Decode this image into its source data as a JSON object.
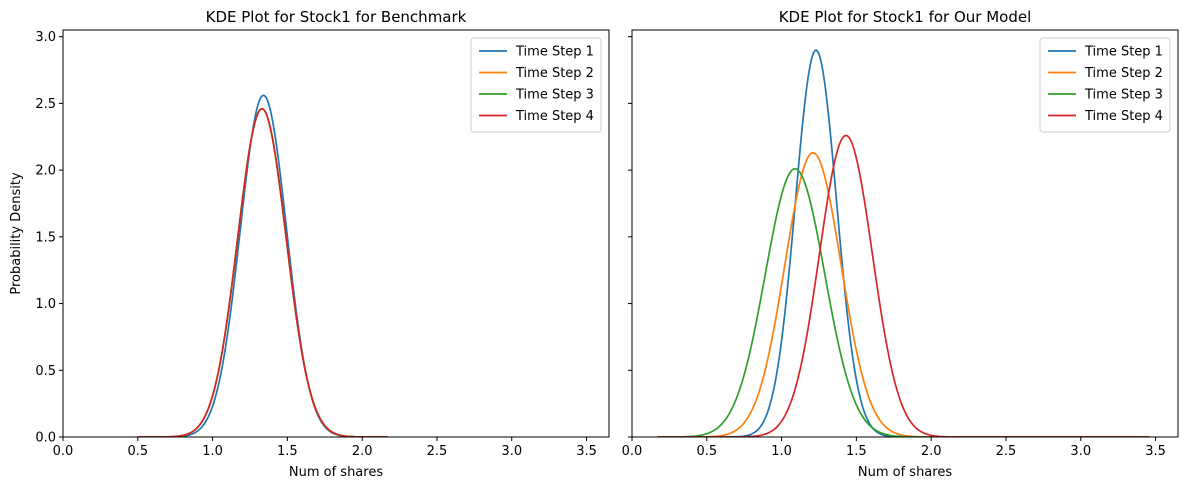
{
  "chart_data": [
    {
      "type": "line",
      "title": "KDE Plot for Stock1 for Benchmark",
      "xlabel": "Num of shares",
      "ylabel": "Probability Density",
      "xlim": [
        0.0,
        3.65
      ],
      "ylim": [
        0.0,
        3.05
      ],
      "xticks": [
        "0.0",
        "0.5",
        "1.0",
        "1.5",
        "2.0",
        "2.5",
        "3.0",
        "3.5"
      ],
      "yticks": [
        "0.0",
        "0.5",
        "1.0",
        "1.5",
        "2.0",
        "2.5",
        "3.0"
      ],
      "show_yticklabels": true,
      "grid": false,
      "legend": "top-right",
      "x_range": [
        0.5,
        2.17
      ],
      "series": [
        {
          "name": "Time Step 1",
          "color": "#1f77b4",
          "peak_x": 1.34,
          "peak_y": 2.56,
          "sigma": 0.155
        },
        {
          "name": "Time Step 2",
          "color": "#ff7f0e",
          "peak_x": 1.33,
          "peak_y": 2.46,
          "sigma": 0.162
        },
        {
          "name": "Time Step 3",
          "color": "#2ca02c",
          "peak_x": 1.33,
          "peak_y": 2.46,
          "sigma": 0.162
        },
        {
          "name": "Time Step 4",
          "color": "#d62728",
          "peak_x": 1.33,
          "peak_y": 2.46,
          "sigma": 0.162
        }
      ]
    },
    {
      "type": "line",
      "title": "KDE Plot for Stock1 for Our Model",
      "xlabel": "Num of shares",
      "ylabel": "",
      "xlim": [
        0.0,
        3.65
      ],
      "ylim": [
        0.0,
        3.05
      ],
      "xticks": [
        "0.0",
        "0.5",
        "1.0",
        "1.5",
        "2.0",
        "2.5",
        "3.0",
        "3.5"
      ],
      "yticks": [
        "0.0",
        "0.5",
        "1.0",
        "1.5",
        "2.0",
        "2.5",
        "3.0"
      ],
      "show_yticklabels": false,
      "grid": false,
      "legend": "top-right",
      "x_range": [
        0.17,
        3.46
      ],
      "series": [
        {
          "name": "Time Step 1",
          "color": "#1f77b4",
          "peak_x": 1.23,
          "peak_y": 2.9,
          "sigma": 0.138
        },
        {
          "name": "Time Step 2",
          "color": "#ff7f0e",
          "peak_x": 1.21,
          "peak_y": 2.13,
          "sigma": 0.188
        },
        {
          "name": "Time Step 3",
          "color": "#2ca02c",
          "peak_x": 1.09,
          "peak_y": 2.01,
          "sigma": 0.199
        },
        {
          "name": "Time Step 4",
          "color": "#d62728",
          "peak_x": 1.43,
          "peak_y": 2.26,
          "sigma": 0.177
        }
      ]
    }
  ]
}
